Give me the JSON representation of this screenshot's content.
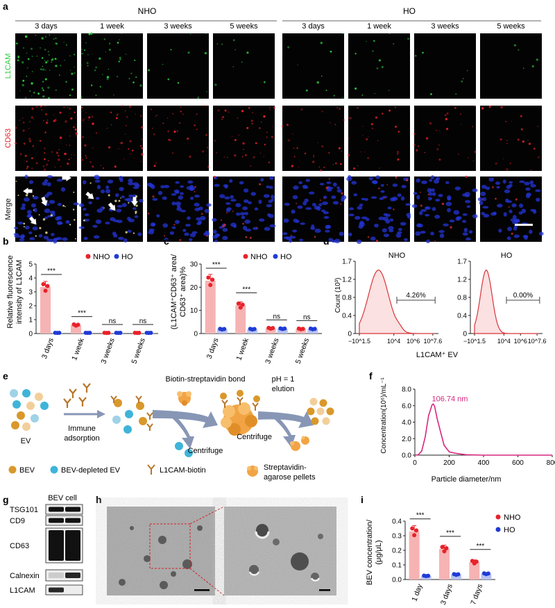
{
  "panel_a": {
    "letter": "a",
    "groups": [
      "NHO",
      "HO"
    ],
    "columns": [
      "3 days",
      "1 week",
      "3 weeks",
      "5 weeks",
      "3 days",
      "1 week",
      "3 weeks",
      "5 weeks"
    ],
    "rows": [
      {
        "label": "L1CAM",
        "color": "#2ecc40"
      },
      {
        "label": "CD63",
        "color": "#e8222a"
      },
      {
        "label": "Merge",
        "color": "#111111"
      }
    ],
    "green_level": [
      0.85,
      0.45,
      0.12,
      0.1,
      0.12,
      0.15,
      0.08,
      0.06
    ],
    "red_level": [
      0.85,
      0.55,
      0.35,
      0.45,
      0.35,
      0.3,
      0.3,
      0.25
    ]
  },
  "panel_b": {
    "letter": "b",
    "ylabel": [
      "Relative fluorescence",
      "intensity of L1CAM"
    ],
    "legend": [
      "NHO",
      "HO"
    ],
    "sig": [
      "***",
      "***",
      "ns",
      "ns"
    ],
    "chart_data": {
      "type": "bar",
      "categories": [
        "3 days",
        "1 week",
        "3 weeks",
        "5 weeks"
      ],
      "series": [
        {
          "name": "NHO",
          "values": [
            3.35,
            0.62,
            0.05,
            0.05
          ]
        },
        {
          "name": "HO",
          "values": [
            0.05,
            0.05,
            0.05,
            0.05
          ]
        }
      ],
      "ylim": [
        0,
        5
      ],
      "yticks": [
        0,
        1,
        2,
        3,
        4,
        5
      ]
    }
  },
  "panel_c": {
    "letter": "c",
    "ylabel": [
      "(L1CAM⁺CD63⁺ area/",
      "CD63⁺ area)%"
    ],
    "legend": [
      "NHO",
      "HO"
    ],
    "sig": [
      "***",
      "***",
      "ns",
      "ns"
    ],
    "chart_data": {
      "type": "bar",
      "categories": [
        "3 days",
        "1 week",
        "3 weeks",
        "5 weeks"
      ],
      "series": [
        {
          "name": "NHO",
          "values": [
            22.8,
            12.2,
            2.3,
            2.0
          ]
        },
        {
          "name": "HO",
          "values": [
            1.9,
            1.9,
            2.1,
            2.0
          ]
        }
      ],
      "ylim": [
        0,
        30
      ],
      "yticks": [
        0,
        10,
        20,
        30
      ]
    }
  },
  "panel_d": {
    "letter": "d",
    "ylabel": "Count (10³)",
    "xlabel": "L1CAM⁺ EV",
    "yticks": [
      "0",
      "0.4",
      "0.8",
      "1.2",
      "1.7"
    ],
    "xticks": [
      "−10^1.5",
      "10^4",
      "10^6",
      "10^7.6"
    ],
    "plots": [
      {
        "title": "NHO",
        "gate_label": "4.26%"
      },
      {
        "title": "HO",
        "gate_label": "0.00%"
      }
    ]
  },
  "panel_e": {
    "letter": "e",
    "labels": {
      "ev": "EV",
      "immune": [
        "Immune",
        "adsorption"
      ],
      "biotin": "Biotin-streptavidin bond",
      "centrifuge1": "Centrifuge",
      "centrifuge2": "Centrifuge",
      "elution": [
        "pH = 1",
        "elution"
      ]
    },
    "legend": [
      "BEV",
      "BEV-depleted EV",
      "L1CAM-biotin",
      "Streptavidin-",
      "agarose pellets"
    ],
    "colors": {
      "bev": "#d9982b",
      "depleted": "#3fb4d8",
      "antibody": "#b7762a",
      "pellet": "#f2a444"
    }
  },
  "panel_f": {
    "letter": "f",
    "ylabel": "Concentration(10⁶)/mL⁻¹",
    "xlabel": "Particle diameter/nm",
    "peak_label": "106.74 nm",
    "chart_data": {
      "type": "line",
      "x": [
        0,
        20,
        40,
        60,
        80,
        100,
        107,
        115,
        130,
        150,
        170,
        200,
        230,
        260,
        300,
        400,
        600,
        800
      ],
      "y": [
        0,
        0.05,
        0.5,
        2.2,
        4.8,
        6.1,
        6.2,
        5.9,
        4.4,
        2.8,
        1.2,
        0.4,
        0.25,
        0.15,
        0.05,
        0,
        0,
        0
      ],
      "xlim": [
        0,
        800
      ],
      "ylim": [
        0,
        8
      ],
      "xticks": [
        0,
        200,
        400,
        600,
        800
      ],
      "yticks": [
        "0.0",
        "2.0",
        "4.0",
        "6.0",
        "8.0"
      ]
    }
  },
  "panel_g": {
    "letter": "g",
    "header": "BEV cell",
    "bands": [
      "TSG101",
      "CD9",
      "CD63",
      "Calnexin",
      "L1CAM"
    ]
  },
  "panel_h": {
    "letter": "h"
  },
  "panel_i": {
    "letter": "i",
    "ylabel": [
      "BEV concentration/",
      "(μg/μL)"
    ],
    "legend": [
      "NHO",
      "HO"
    ],
    "sig": [
      "***",
      "***",
      "***"
    ],
    "chart_data": {
      "type": "bar",
      "categories": [
        "1 day",
        "3 days",
        "7 days"
      ],
      "series": [
        {
          "name": "NHO",
          "values": [
            0.33,
            0.21,
            0.12
          ]
        },
        {
          "name": "HO",
          "values": [
            0.025,
            0.035,
            0.04
          ]
        }
      ],
      "ylim": [
        0,
        0.4
      ],
      "yticks": [
        "0.0",
        "0.1",
        "0.2",
        "0.3",
        "0.4"
      ]
    }
  }
}
